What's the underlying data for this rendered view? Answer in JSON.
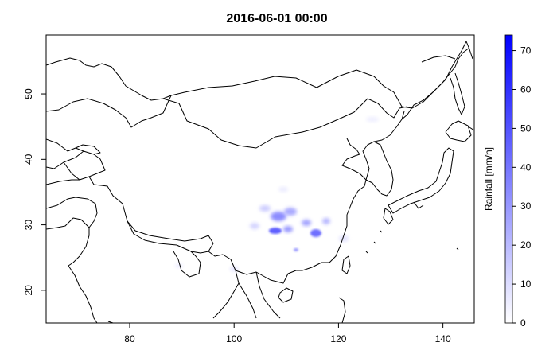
{
  "map": {
    "title": "2016-06-01 00:00",
    "x_range": [
      64,
      146
    ],
    "y_range": [
      15,
      59
    ],
    "x_ticks": [
      80,
      100,
      120,
      140
    ],
    "y_ticks": [
      20,
      30,
      40,
      50
    ],
    "x_tick_labels": [
      "80",
      "100",
      "120",
      "140"
    ],
    "y_tick_labels": [
      "20",
      "30",
      "40",
      "50"
    ]
  },
  "legend": {
    "label": "Rainfall [mm/h]",
    "range": [
      0,
      74
    ],
    "ticks": [
      0,
      10,
      20,
      30,
      40,
      50,
      60,
      70
    ],
    "tick_labels": [
      "0",
      "10",
      "20",
      "30",
      "40",
      "50",
      "60",
      "70"
    ],
    "color_low": "#ffffff",
    "color_high": "#0000ff"
  },
  "colors": {
    "border": "#000000",
    "rain": "#0000ff",
    "background": "#ffffff"
  }
}
